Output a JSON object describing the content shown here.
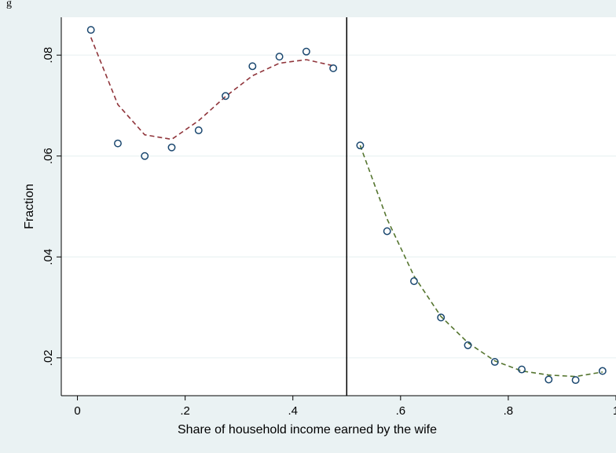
{
  "top_clipped_text": "g",
  "chart_data": {
    "type": "scatter",
    "xlabel": "Share of household income earned by the wife",
    "ylabel": "Fraction",
    "xlim": [
      -0.03,
      1.0
    ],
    "ylim": [
      0.0125,
      0.0875
    ],
    "xticks": [
      0,
      0.2,
      0.4,
      0.6,
      0.8,
      1
    ],
    "xtick_labels": [
      "0",
      ".2",
      ".4",
      ".6",
      ".8",
      "1"
    ],
    "yticks": [
      0.02,
      0.04,
      0.06,
      0.08
    ],
    "ytick_labels": [
      ".02",
      ".04",
      ".06",
      ".08"
    ],
    "grid": "horizontal",
    "vline_x": 0.5,
    "colors": {
      "outer_bg": "#eaf2f3",
      "plot_bg": "#ffffff",
      "grid": "#eaf2f3",
      "points": "#1a476f",
      "left_fit": "#90353b",
      "right_fit": "#55752f",
      "vline": "#000000"
    },
    "scatter": [
      {
        "x": 0.025,
        "y": 0.085
      },
      {
        "x": 0.075,
        "y": 0.0625
      },
      {
        "x": 0.125,
        "y": 0.06
      },
      {
        "x": 0.175,
        "y": 0.0617
      },
      {
        "x": 0.225,
        "y": 0.0651
      },
      {
        "x": 0.275,
        "y": 0.0719
      },
      {
        "x": 0.325,
        "y": 0.0778
      },
      {
        "x": 0.375,
        "y": 0.0797
      },
      {
        "x": 0.425,
        "y": 0.0807
      },
      {
        "x": 0.475,
        "y": 0.0774
      },
      {
        "x": 0.525,
        "y": 0.0621
      },
      {
        "x": 0.575,
        "y": 0.0451
      },
      {
        "x": 0.625,
        "y": 0.0352
      },
      {
        "x": 0.675,
        "y": 0.028
      },
      {
        "x": 0.725,
        "y": 0.0225
      },
      {
        "x": 0.775,
        "y": 0.0192
      },
      {
        "x": 0.825,
        "y": 0.0177
      },
      {
        "x": 0.875,
        "y": 0.0157
      },
      {
        "x": 0.925,
        "y": 0.0156
      },
      {
        "x": 0.975,
        "y": 0.0174
      }
    ],
    "fit_lines": [
      {
        "color_key": "left_fit",
        "points": [
          {
            "x": 0.025,
            "y": 0.0835
          },
          {
            "x": 0.075,
            "y": 0.0702
          },
          {
            "x": 0.125,
            "y": 0.0642
          },
          {
            "x": 0.175,
            "y": 0.0633
          },
          {
            "x": 0.225,
            "y": 0.067
          },
          {
            "x": 0.275,
            "y": 0.0718
          },
          {
            "x": 0.325,
            "y": 0.0759
          },
          {
            "x": 0.375,
            "y": 0.0784
          },
          {
            "x": 0.425,
            "y": 0.0791
          },
          {
            "x": 0.475,
            "y": 0.0779
          }
        ]
      },
      {
        "color_key": "right_fit",
        "points": [
          {
            "x": 0.525,
            "y": 0.0621
          },
          {
            "x": 0.575,
            "y": 0.0475
          },
          {
            "x": 0.625,
            "y": 0.0362
          },
          {
            "x": 0.675,
            "y": 0.0282
          },
          {
            "x": 0.725,
            "y": 0.023
          },
          {
            "x": 0.775,
            "y": 0.0194
          },
          {
            "x": 0.825,
            "y": 0.0174
          },
          {
            "x": 0.875,
            "y": 0.0166
          },
          {
            "x": 0.925,
            "y": 0.0163
          },
          {
            "x": 0.975,
            "y": 0.0172
          }
        ]
      }
    ]
  }
}
